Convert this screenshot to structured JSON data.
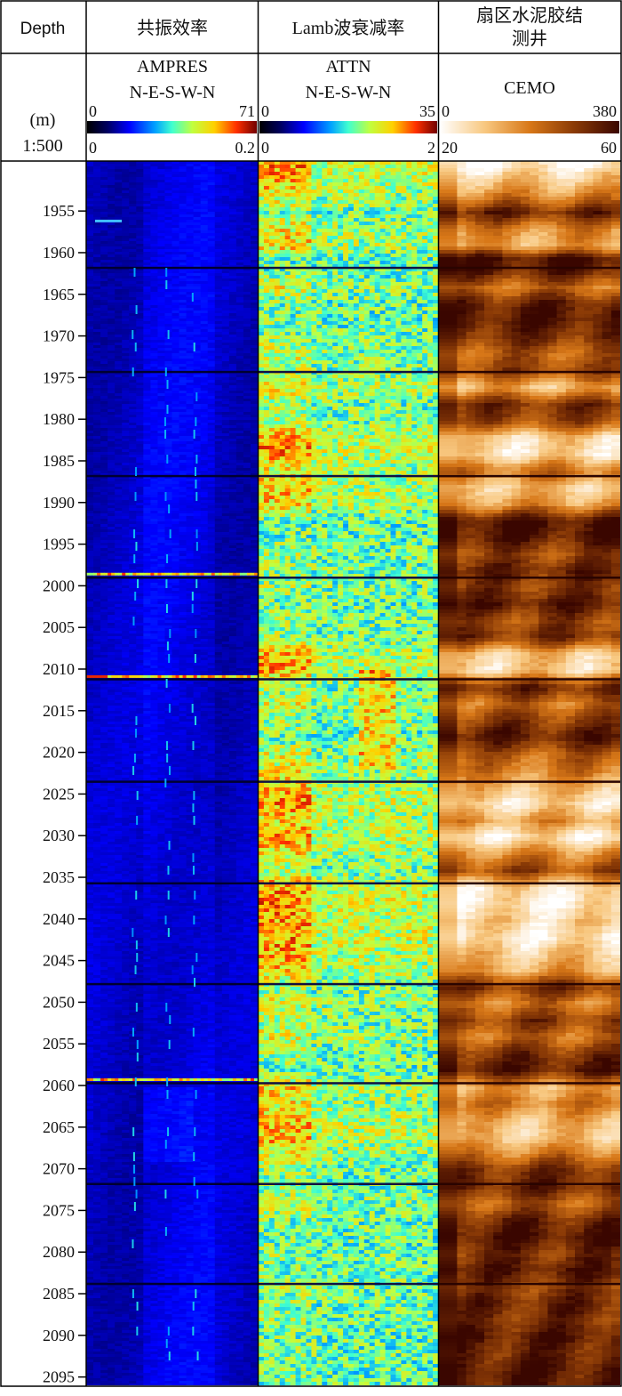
{
  "chart_data": {
    "type": "heatmap",
    "depth_column": {
      "header": "Depth",
      "unit": "(m)",
      "scale": "1:500",
      "range": [
        1949,
        2096
      ],
      "labels": [
        1955,
        1960,
        1965,
        1970,
        1975,
        1980,
        1985,
        1990,
        1995,
        2000,
        2005,
        2010,
        2015,
        2020,
        2025,
        2030,
        2035,
        2040,
        2045,
        2050,
        2055,
        2060,
        2065,
        2070,
        2075,
        2080,
        2085,
        2090,
        2095
      ]
    },
    "tracks": [
      {
        "id": "ampres",
        "title": "共振效率",
        "curve": "AMPRES",
        "orientation": "N-E-S-W-N",
        "palette_range": [
          0,
          71
        ],
        "palette_min_label": "0",
        "palette_max_label": "71",
        "axis_range": [
          0,
          0.2
        ],
        "axis_min_label": "0",
        "axis_max_label": "0.2",
        "colormap": "jet"
      },
      {
        "id": "attn",
        "title": "Lamb波衰减率",
        "curve": "ATTN",
        "orientation": "N-E-S-W-N",
        "palette_range": [
          0,
          35
        ],
        "palette_min_label": "0",
        "palette_max_label": "35",
        "axis_range": [
          0,
          2
        ],
        "axis_min_label": "0",
        "axis_max_label": "2",
        "colormap": "jet"
      },
      {
        "id": "cemo",
        "title_lines": [
          "扇区水泥胶结",
          "测井"
        ],
        "curve": "CEMO",
        "palette_range": [
          0,
          380
        ],
        "palette_min_label": "0",
        "palette_max_label": "380",
        "axis_range": [
          20,
          60
        ],
        "axis_min_label": "20",
        "axis_max_label": "60",
        "colormap": "copper"
      }
    ],
    "collar_depths": [
      1961.8,
      1974.3,
      1986.8,
      1999.0,
      2011.2,
      2023.5,
      2035.7,
      2047.8,
      2059.7,
      2071.8,
      2083.8
    ],
    "ampres_anomalies": [
      1956.2,
      1998.6,
      2010.9,
      2059.3
    ],
    "cemo_profile": [
      {
        "d": 1951,
        "v": 0.25
      },
      {
        "d": 1953,
        "v": 0.45
      },
      {
        "d": 1955,
        "v": 0.85
      },
      {
        "d": 1957,
        "v": 0.45
      },
      {
        "d": 1959,
        "v": 0.35
      },
      {
        "d": 1960.5,
        "v": 0.95
      },
      {
        "d": 1962,
        "v": 0.9
      },
      {
        "d": 1964,
        "v": 0.55
      },
      {
        "d": 1966,
        "v": 0.88
      },
      {
        "d": 1968,
        "v": 0.92
      },
      {
        "d": 1970,
        "v": 0.8
      },
      {
        "d": 1972,
        "v": 0.6
      },
      {
        "d": 1974,
        "v": 0.7
      },
      {
        "d": 1976,
        "v": 0.3
      },
      {
        "d": 1978,
        "v": 0.8
      },
      {
        "d": 1980,
        "v": 0.7
      },
      {
        "d": 1982,
        "v": 0.2
      },
      {
        "d": 1984,
        "v": 0.15
      },
      {
        "d": 1986,
        "v": 0.55
      },
      {
        "d": 1988,
        "v": 0.25
      },
      {
        "d": 1990,
        "v": 0.4
      },
      {
        "d": 1992,
        "v": 0.95
      },
      {
        "d": 1994,
        "v": 0.9
      },
      {
        "d": 1996,
        "v": 0.7
      },
      {
        "d": 1998,
        "v": 0.85
      },
      {
        "d": 2000,
        "v": 0.75
      },
      {
        "d": 2002,
        "v": 0.9
      },
      {
        "d": 2004,
        "v": 0.7
      },
      {
        "d": 2006,
        "v": 0.8
      },
      {
        "d": 2008,
        "v": 0.25
      },
      {
        "d": 2010,
        "v": 0.2
      },
      {
        "d": 2012,
        "v": 0.85
      },
      {
        "d": 2014,
        "v": 0.55
      },
      {
        "d": 2016,
        "v": 0.75
      },
      {
        "d": 2018,
        "v": 0.9
      },
      {
        "d": 2020,
        "v": 0.6
      },
      {
        "d": 2022,
        "v": 0.5
      },
      {
        "d": 2024,
        "v": 0.3
      },
      {
        "d": 2026,
        "v": 0.15
      },
      {
        "d": 2028,
        "v": 0.4
      },
      {
        "d": 2030,
        "v": 0.1
      },
      {
        "d": 2032,
        "v": 0.45
      },
      {
        "d": 2034,
        "v": 0.7
      },
      {
        "d": 2036,
        "v": 0.15
      },
      {
        "d": 2038,
        "v": 0.1
      },
      {
        "d": 2040,
        "v": 0.2
      },
      {
        "d": 2042,
        "v": 0.1
      },
      {
        "d": 2044,
        "v": 0.25
      },
      {
        "d": 2046,
        "v": 0.35
      },
      {
        "d": 2048,
        "v": 0.8
      },
      {
        "d": 2050,
        "v": 0.5
      },
      {
        "d": 2052,
        "v": 0.75
      },
      {
        "d": 2054,
        "v": 0.55
      },
      {
        "d": 2056,
        "v": 0.8
      },
      {
        "d": 2058,
        "v": 0.9
      },
      {
        "d": 2060,
        "v": 0.35
      },
      {
        "d": 2062,
        "v": 0.5
      },
      {
        "d": 2064,
        "v": 0.3
      },
      {
        "d": 2066,
        "v": 0.25
      },
      {
        "d": 2068,
        "v": 0.5
      },
      {
        "d": 2070,
        "v": 0.8
      },
      {
        "d": 2072,
        "v": 0.85
      },
      {
        "d": 2074,
        "v": 0.6
      },
      {
        "d": 2076,
        "v": 0.85
      },
      {
        "d": 2078,
        "v": 0.92
      },
      {
        "d": 2080,
        "v": 0.8
      },
      {
        "d": 2082,
        "v": 0.9
      },
      {
        "d": 2084,
        "v": 0.75
      },
      {
        "d": 2086,
        "v": 0.85
      },
      {
        "d": 2088,
        "v": 0.8
      },
      {
        "d": 2090,
        "v": 0.9
      },
      {
        "d": 2092,
        "v": 0.85
      },
      {
        "d": 2094,
        "v": 0.92
      },
      {
        "d": 2096,
        "v": 0.9
      }
    ]
  }
}
